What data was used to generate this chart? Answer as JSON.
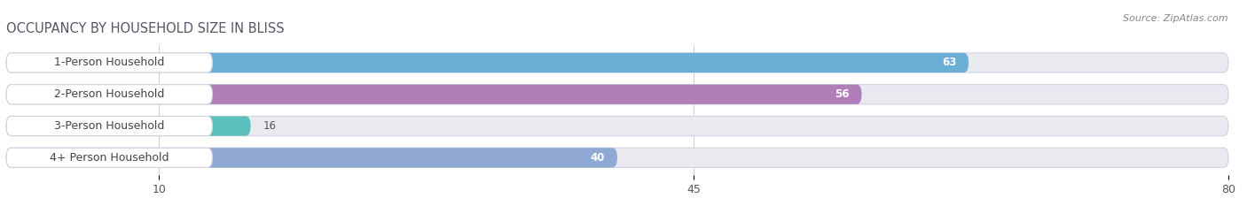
{
  "title": "OCCUPANCY BY HOUSEHOLD SIZE IN BLISS",
  "source": "Source: ZipAtlas.com",
  "categories": [
    "1-Person Household",
    "2-Person Household",
    "3-Person Household",
    "4+ Person Household"
  ],
  "values": [
    63,
    56,
    16,
    40
  ],
  "bar_colors": [
    "#6aaed6",
    "#b07fba",
    "#5bbfbc",
    "#8fa8d4"
  ],
  "bar_bg_color": "#e8eaf0",
  "xlim": [
    0,
    80
  ],
  "xticks": [
    10,
    45,
    80
  ],
  "title_fontsize": 10.5,
  "label_fontsize": 9,
  "value_fontsize": 8.5,
  "source_fontsize": 8,
  "background_color": "#ffffff",
  "bar_height": 0.62,
  "value_inside_threshold": 20
}
